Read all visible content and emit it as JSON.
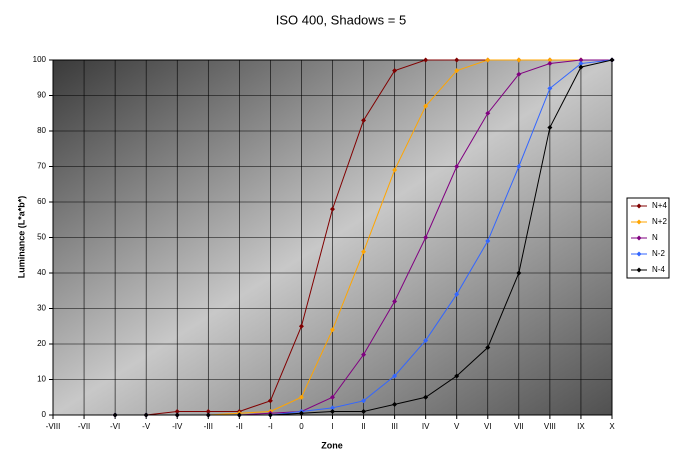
{
  "chart_data": {
    "type": "line",
    "title": "ISO 400, Shadows = 5",
    "x_label": "Zone",
    "y_label": "Luminance (L*a*b*)",
    "categories": [
      "-VIII",
      "-VII",
      "-VI",
      "-V",
      "-IV",
      "-III",
      "-II",
      "-I",
      "0",
      "I",
      "II",
      "III",
      "IV",
      "V",
      "VI",
      "VII",
      "VIII",
      "IX",
      "X"
    ],
    "ylim": [
      0,
      100
    ],
    "yticks": [
      0,
      10,
      20,
      30,
      40,
      50,
      60,
      70,
      80,
      90,
      100
    ],
    "grid": true,
    "legend": "right",
    "series": [
      {
        "name": "N+4",
        "color": "#800000",
        "values": [
          null,
          null,
          0,
          0,
          1,
          1,
          1,
          4,
          25,
          58,
          83,
          97,
          100,
          100,
          100,
          100,
          100,
          100,
          100
        ]
      },
      {
        "name": "N+2",
        "color": "#ffa500",
        "values": [
          null,
          null,
          0,
          0,
          0,
          0,
          0.5,
          1,
          5,
          24,
          46,
          69,
          87,
          97,
          100,
          100,
          100,
          100,
          100
        ]
      },
      {
        "name": "N",
        "color": "#800080",
        "values": [
          null,
          null,
          0,
          0,
          0,
          0,
          0,
          0.5,
          1,
          5,
          17,
          32,
          50,
          70,
          85,
          96,
          99,
          100,
          100
        ]
      },
      {
        "name": "N-2",
        "color": "#3366ff",
        "values": [
          null,
          null,
          0,
          0,
          0,
          0,
          0,
          0,
          1,
          2,
          4,
          11,
          21,
          34,
          49,
          70,
          92,
          99,
          100
        ]
      },
      {
        "name": "N-4",
        "color": "#000000",
        "values": [
          null,
          null,
          0,
          0,
          0,
          0,
          0,
          0,
          0.5,
          1,
          1,
          3,
          5,
          11,
          19,
          40,
          81,
          98,
          100
        ]
      }
    ]
  }
}
